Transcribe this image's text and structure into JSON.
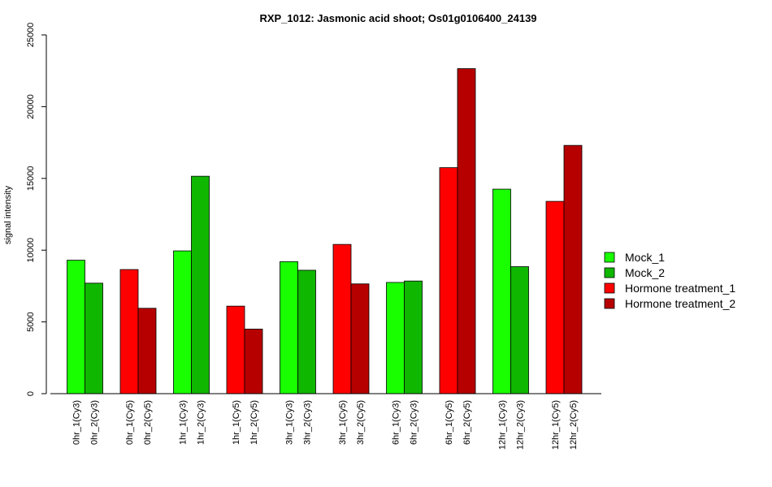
{
  "chart_data": {
    "type": "bar",
    "title": "RXP_1012: Jasmonic acid shoot; Os01g0106400_24139",
    "xlabel": "",
    "ylabel": "signal intensity",
    "ylim": [
      0,
      25000
    ],
    "yticks": [
      0,
      5000,
      10000,
      15000,
      20000,
      25000
    ],
    "grid": false,
    "legend_position": "right",
    "legend": [
      {
        "name": "Mock_1",
        "color": "#19ff00"
      },
      {
        "name": "Mock_2",
        "color": "#10b700"
      },
      {
        "name": "Hormone treatment_1",
        "color": "#ff0000"
      },
      {
        "name": "Hormone treatment_2",
        "color": "#b60000"
      }
    ],
    "bars": [
      {
        "label": "0hr_1(Cy3)",
        "value": 9300,
        "group": "Mock_1"
      },
      {
        "label": "0hr_2(Cy3)",
        "value": 7700,
        "group": "Mock_2"
      },
      {
        "label": "0hr_1(Cy5)",
        "value": 8650,
        "group": "Hormone treatment_1"
      },
      {
        "label": "0hr_2(Cy5)",
        "value": 5950,
        "group": "Hormone treatment_2"
      },
      {
        "label": "1hr_1(Cy3)",
        "value": 9950,
        "group": "Mock_1"
      },
      {
        "label": "1hr_2(Cy3)",
        "value": 15150,
        "group": "Mock_2"
      },
      {
        "label": "1hr_1(Cy5)",
        "value": 6100,
        "group": "Hormone treatment_1"
      },
      {
        "label": "1hr_2(Cy5)",
        "value": 4500,
        "group": "Hormone treatment_2"
      },
      {
        "label": "3hr_1(Cy3)",
        "value": 9200,
        "group": "Mock_1"
      },
      {
        "label": "3hr_2(Cy3)",
        "value": 8600,
        "group": "Mock_2"
      },
      {
        "label": "3hr_1(Cy5)",
        "value": 10400,
        "group": "Hormone treatment_1"
      },
      {
        "label": "3hr_2(Cy5)",
        "value": 7650,
        "group": "Hormone treatment_2"
      },
      {
        "label": "6hr_1(Cy3)",
        "value": 7750,
        "group": "Mock_1"
      },
      {
        "label": "6hr_2(Cy3)",
        "value": 7850,
        "group": "Mock_2"
      },
      {
        "label": "6hr_1(Cy5)",
        "value": 15750,
        "group": "Hormone treatment_1"
      },
      {
        "label": "6hr_2(Cy5)",
        "value": 22650,
        "group": "Hormone treatment_2"
      },
      {
        "label": "12hr_1(Cy3)",
        "value": 14250,
        "group": "Mock_1"
      },
      {
        "label": "12hr_2(Cy3)",
        "value": 8850,
        "group": "Mock_2"
      },
      {
        "label": "12hr_1(Cy5)",
        "value": 13400,
        "group": "Hormone treatment_1"
      },
      {
        "label": "12hr_2(Cy5)",
        "value": 17300,
        "group": "Hormone treatment_2"
      }
    ]
  }
}
